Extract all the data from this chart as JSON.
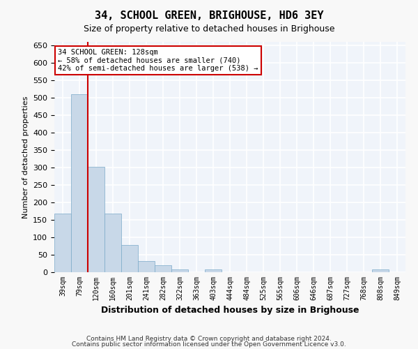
{
  "title": "34, SCHOOL GREEN, BRIGHOUSE, HD6 3EY",
  "subtitle": "Size of property relative to detached houses in Brighouse",
  "xlabel": "Distribution of detached houses by size in Brighouse",
  "ylabel": "Number of detached properties",
  "bar_color": "#c8d8e8",
  "bar_edge_color": "#7aaac8",
  "background_color": "#f0f4fa",
  "grid_color": "#ffffff",
  "categories": [
    "39sqm",
    "79sqm",
    "120sqm",
    "160sqm",
    "201sqm",
    "241sqm",
    "282sqm",
    "322sqm",
    "363sqm",
    "403sqm",
    "444sqm",
    "484sqm",
    "525sqm",
    "565sqm",
    "606sqm",
    "646sqm",
    "687sqm",
    "727sqm",
    "768sqm",
    "808sqm",
    "849sqm"
  ],
  "values": [
    168,
    510,
    302,
    168,
    78,
    32,
    20,
    8,
    0,
    8,
    0,
    0,
    0,
    0,
    0,
    0,
    0,
    0,
    0,
    8,
    0
  ],
  "ylim": [
    0,
    660
  ],
  "yticks": [
    0,
    50,
    100,
    150,
    200,
    250,
    300,
    350,
    400,
    450,
    500,
    550,
    600,
    650
  ],
  "property_line_x": 2,
  "property_line_color": "#cc0000",
  "annotation_text": "34 SCHOOL GREEN: 128sqm\n← 58% of detached houses are smaller (740)\n42% of semi-detached houses are larger (538) →",
  "annotation_box_color": "#ffffff",
  "annotation_box_edge_color": "#cc0000",
  "footer_line1": "Contains HM Land Registry data © Crown copyright and database right 2024.",
  "footer_line2": "Contains public sector information licensed under the Open Government Licence v3.0."
}
